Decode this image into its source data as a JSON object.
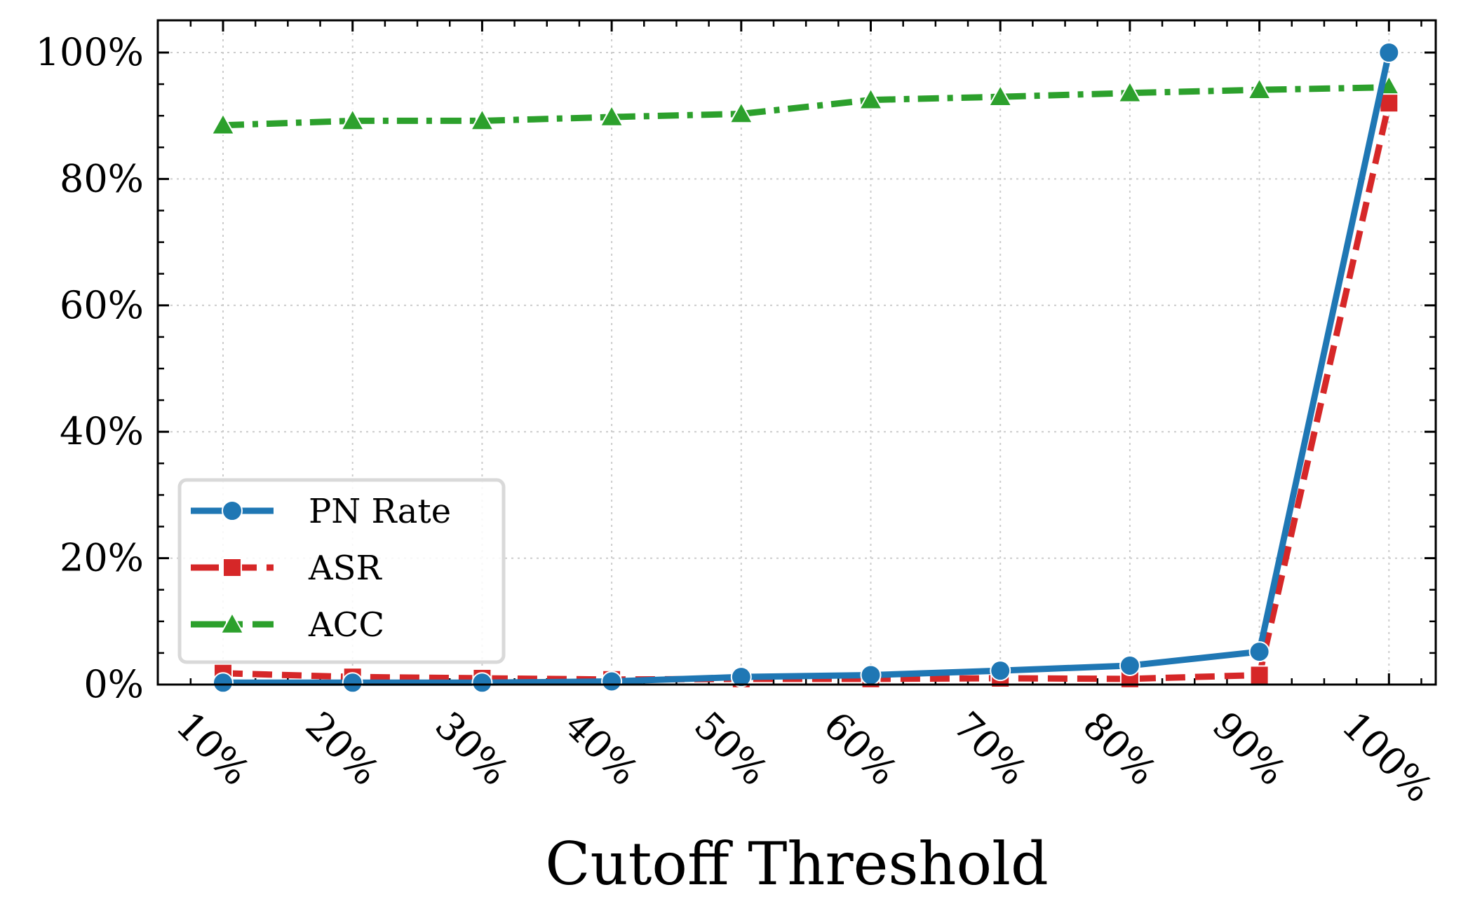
{
  "chart_data": {
    "type": "line",
    "title": "",
    "xlabel": "Cutoff Threshold",
    "ylabel": "",
    "categories": [
      "10%",
      "20%",
      "30%",
      "40%",
      "50%",
      "60%",
      "70%",
      "80%",
      "90%",
      "100%"
    ],
    "yticks": [
      "0%",
      "20%",
      "40%",
      "60%",
      "80%",
      "100%"
    ],
    "ylim": [
      0,
      100
    ],
    "grid": true,
    "legend_position": "lower-left",
    "series": [
      {
        "name": "PN Rate",
        "color": "#1f77b4",
        "marker": "circle",
        "linestyle": "solid",
        "values": [
          0.3,
          0.3,
          0.3,
          0.5,
          1.2,
          1.5,
          2.2,
          3.0,
          5.2,
          100.0
        ]
      },
      {
        "name": "ASR",
        "color": "#d62728",
        "marker": "square",
        "linestyle": "dashed",
        "values": [
          1.8,
          1.2,
          1.0,
          0.8,
          0.9,
          0.9,
          1.0,
          0.9,
          1.5,
          92.0
        ]
      },
      {
        "name": "ACC",
        "color": "#2ca02c",
        "marker": "triangle",
        "linestyle": "dashdot",
        "values": [
          88.5,
          89.2,
          89.2,
          89.8,
          90.3,
          92.5,
          93.0,
          93.6,
          94.1,
          94.5
        ]
      }
    ]
  }
}
